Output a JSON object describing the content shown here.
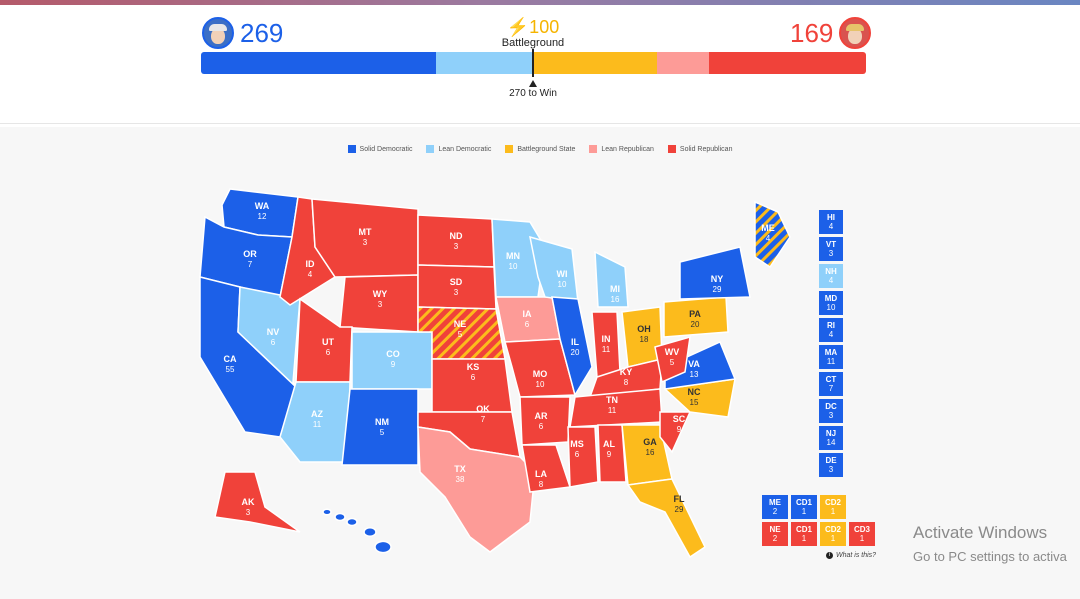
{
  "header": {
    "dem_count": "269",
    "rep_count": "169",
    "battleground_count": "⚡100",
    "battleground_label": "Battleground",
    "win_label": "270 to Win"
  },
  "bar": {
    "segments": [
      {
        "name": "solid-dem",
        "value": 190,
        "color": "#1c60e8"
      },
      {
        "name": "lean-dem",
        "value": 79,
        "color": "#8fd0fa"
      },
      {
        "name": "battleground",
        "value": 100,
        "color": "#fcbb1c"
      },
      {
        "name": "lean-rep",
        "value": 42,
        "color": "#fd9b97"
      },
      {
        "name": "solid-rep",
        "value": 127,
        "color": "#f0423a"
      }
    ]
  },
  "legend": [
    {
      "label": "Solid Democratic",
      "color": "#1c60e8"
    },
    {
      "label": "Lean Democratic",
      "color": "#8fd0fa"
    },
    {
      "label": "Battleground State",
      "color": "#fcbb1c"
    },
    {
      "label": "Lean Republican",
      "color": "#fd9b97"
    },
    {
      "label": "Solid Republican",
      "color": "#f0423a"
    }
  ],
  "states": [
    {
      "abbr": "WA",
      "ev": "12",
      "cat": "sd"
    },
    {
      "abbr": "OR",
      "ev": "7",
      "cat": "sd"
    },
    {
      "abbr": "CA",
      "ev": "55",
      "cat": "sd"
    },
    {
      "abbr": "NV",
      "ev": "6",
      "cat": "ld"
    },
    {
      "abbr": "ID",
      "ev": "4",
      "cat": "sr"
    },
    {
      "abbr": "MT",
      "ev": "3",
      "cat": "sr"
    },
    {
      "abbr": "WY",
      "ev": "3",
      "cat": "sr"
    },
    {
      "abbr": "UT",
      "ev": "6",
      "cat": "sr"
    },
    {
      "abbr": "AZ",
      "ev": "11",
      "cat": "ld"
    },
    {
      "abbr": "CO",
      "ev": "9",
      "cat": "ld"
    },
    {
      "abbr": "NM",
      "ev": "5",
      "cat": "sd"
    },
    {
      "abbr": "ND",
      "ev": "3",
      "cat": "sr"
    },
    {
      "abbr": "SD",
      "ev": "3",
      "cat": "sr"
    },
    {
      "abbr": "NE",
      "ev": "5",
      "cat": "sr"
    },
    {
      "abbr": "KS",
      "ev": "6",
      "cat": "sr"
    },
    {
      "abbr": "OK",
      "ev": "7",
      "cat": "sr"
    },
    {
      "abbr": "TX",
      "ev": "38",
      "cat": "lr"
    },
    {
      "abbr": "MN",
      "ev": "10",
      "cat": "ld"
    },
    {
      "abbr": "IA",
      "ev": "6",
      "cat": "lr"
    },
    {
      "abbr": "MO",
      "ev": "10",
      "cat": "sr"
    },
    {
      "abbr": "AR",
      "ev": "6",
      "cat": "sr"
    },
    {
      "abbr": "LA",
      "ev": "8",
      "cat": "sr"
    },
    {
      "abbr": "WI",
      "ev": "10",
      "cat": "ld"
    },
    {
      "abbr": "IL",
      "ev": "20",
      "cat": "sd"
    },
    {
      "abbr": "MI",
      "ev": "16",
      "cat": "ld"
    },
    {
      "abbr": "IN",
      "ev": "11",
      "cat": "sr"
    },
    {
      "abbr": "OH",
      "ev": "18",
      "cat": "bg"
    },
    {
      "abbr": "KY",
      "ev": "8",
      "cat": "sr"
    },
    {
      "abbr": "TN",
      "ev": "11",
      "cat": "sr"
    },
    {
      "abbr": "MS",
      "ev": "6",
      "cat": "sr"
    },
    {
      "abbr": "AL",
      "ev": "9",
      "cat": "sr"
    },
    {
      "abbr": "GA",
      "ev": "16",
      "cat": "bg"
    },
    {
      "abbr": "FL",
      "ev": "29",
      "cat": "bg"
    },
    {
      "abbr": "SC",
      "ev": "9",
      "cat": "sr"
    },
    {
      "abbr": "NC",
      "ev": "15",
      "cat": "bg"
    },
    {
      "abbr": "VA",
      "ev": "13",
      "cat": "sd"
    },
    {
      "abbr": "WV",
      "ev": "5",
      "cat": "sr"
    },
    {
      "abbr": "PA",
      "ev": "20",
      "cat": "bg"
    },
    {
      "abbr": "NY",
      "ev": "29",
      "cat": "sd"
    },
    {
      "abbr": "ME",
      "ev": "4",
      "cat": "sd"
    },
    {
      "abbr": "AK",
      "ev": "3",
      "cat": "sr"
    }
  ],
  "small_states": [
    {
      "abbr": "HI",
      "ev": "4",
      "cat": "sd"
    },
    {
      "abbr": "VT",
      "ev": "3",
      "cat": "sd"
    },
    {
      "abbr": "NH",
      "ev": "4",
      "cat": "ld"
    },
    {
      "abbr": "MD",
      "ev": "10",
      "cat": "sd"
    },
    {
      "abbr": "RI",
      "ev": "4",
      "cat": "sd"
    },
    {
      "abbr": "MA",
      "ev": "11",
      "cat": "sd"
    },
    {
      "abbr": "CT",
      "ev": "7",
      "cat": "sd"
    },
    {
      "abbr": "DC",
      "ev": "3",
      "cat": "sd"
    },
    {
      "abbr": "NJ",
      "ev": "14",
      "cat": "sd"
    },
    {
      "abbr": "DE",
      "ev": "3",
      "cat": "sd"
    }
  ],
  "districts": [
    {
      "label": "ME",
      "ev": "2",
      "cat": "sd"
    },
    {
      "label": "CD1",
      "ev": "1",
      "cat": "sd"
    },
    {
      "label": "CD2",
      "ev": "1",
      "cat": "bg"
    },
    {
      "label": "",
      "ev": "",
      "cat": "none"
    },
    {
      "label": "NE",
      "ev": "2",
      "cat": "sr"
    },
    {
      "label": "CD1",
      "ev": "1",
      "cat": "sr"
    },
    {
      "label": "CD2",
      "ev": "1",
      "cat": "bg"
    },
    {
      "label": "CD3",
      "ev": "1",
      "cat": "sr"
    }
  ],
  "what_is_this": "What is this?",
  "watermark": {
    "line1": "Activate Windows",
    "line2": "Go to PC settings to activa"
  }
}
